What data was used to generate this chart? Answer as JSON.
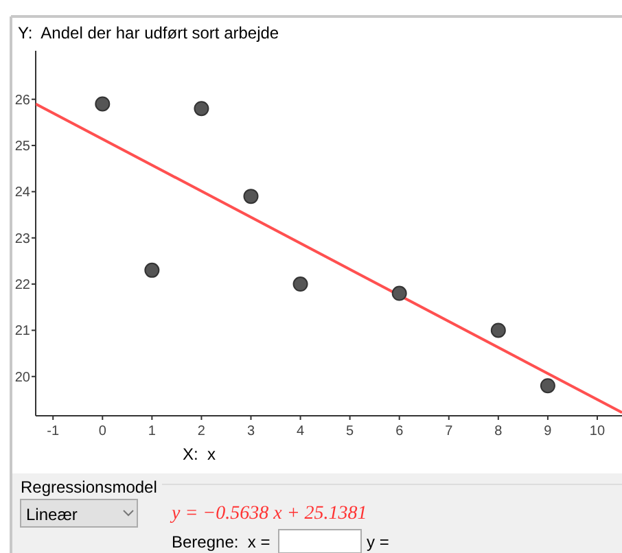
{
  "chart_data": {
    "type": "scatter",
    "xlabel": "X:  x",
    "ylabel": "Y:  Andel der har udført sort arbejde",
    "xlim": [
      -1.35,
      10.5
    ],
    "ylim": [
      19.15,
      27.05
    ],
    "xticks": [
      -1,
      0,
      1,
      2,
      3,
      4,
      5,
      6,
      7,
      8,
      9,
      10
    ],
    "yticks": [
      20,
      21,
      22,
      23,
      24,
      25,
      26
    ],
    "grid": false,
    "series": [
      {
        "marker": "circle",
        "color": "#555555",
        "x": [
          0,
          1,
          2,
          3,
          4,
          6,
          8,
          9
        ],
        "values": [
          25.9,
          22.3,
          25.8,
          23.9,
          22.0,
          21.8,
          21.0,
          19.8
        ]
      },
      {
        "type": "line",
        "marker": "none",
        "color": "#ff5050",
        "x": [
          -1.35,
          10.5
        ],
        "values": [
          25.9,
          19.22
        ]
      }
    ],
    "annotations": [
      "Regressionsmodel",
      "Lineær",
      "y = −0.5638 x + 25.1381",
      "Beregne:  x =",
      "y ="
    ]
  }
}
